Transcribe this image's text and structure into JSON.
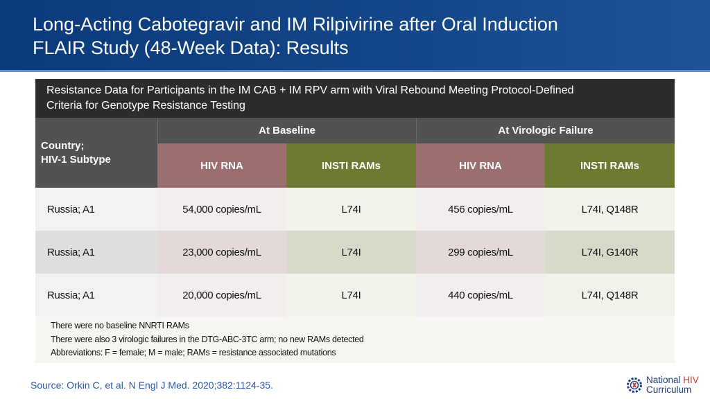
{
  "title": {
    "line1": "Long-Acting Cabotegravir and IM Rilpivirine after Oral Induction",
    "line2": "FLAIR Study (48-Week Data): Results"
  },
  "panel": {
    "heading_line1": "Resistance Data for Participants in the IM CAB + IM RPV arm with Viral Rebound Meeting Protocol-Defined",
    "heading_line2": "Criteria for Genotype Resistance Testing"
  },
  "table": {
    "country_header_line1": "Country;",
    "country_header_line2": "HIV-1 Subtype",
    "group_baseline": "At Baseline",
    "group_failure": "At Virologic Failure",
    "sub_rna": "HIV RNA",
    "sub_rams": "INSTI RAMs",
    "rows": [
      {
        "country": "Russia; A1",
        "base_rna": "54,000 copies/mL",
        "base_rams": "L74I",
        "fail_rna": "456 copies/mL",
        "fail_rams": "L74I, Q148R"
      },
      {
        "country": "Russia; A1",
        "base_rna": "23,000 copies/mL",
        "base_rams": "L74I",
        "fail_rna": "299 copies/mL",
        "fail_rams": "L74I, G140R"
      },
      {
        "country": "Russia; A1",
        "base_rna": "20,000 copies/mL",
        "base_rams": "L74I",
        "fail_rna": "440 copies/mL",
        "fail_rams": "L74I, Q148R"
      }
    ]
  },
  "notes": [
    "There were no baseline NNRTI RAMs",
    "There were also 3 virologic failures in the DTG-ABC-3TC arm; no new RAMs detected",
    "Abbreviations: F = female; M = male; RAMs = resistance associated mutations"
  ],
  "source": "Source: Orkin C, et al. N Engl J Med. 2020;382:1124-35.",
  "logo": {
    "line1_a": "National",
    "line1_b": "HIV",
    "line2": "Curriculum",
    "icon": "gear-ribbon-icon"
  },
  "colors": {
    "header_blue": "#14478a",
    "rna_color": "#9b6f70",
    "rams_color": "#6e7a32"
  }
}
